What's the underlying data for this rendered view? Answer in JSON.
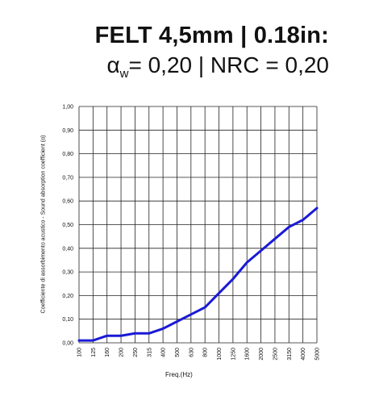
{
  "header": {
    "title": "FELT 4,5mm | 0.18in:",
    "alpha_symbol": "α",
    "alpha_sub": "w",
    "alpha_rest": "= 0,20 | NRC = 0,20"
  },
  "chart_data": {
    "type": "line",
    "title": "FELT 4,5mm | 0.18in:",
    "subtitle": "αw= 0,20 | NRC = 0,20",
    "xlabel": "Freq.(Hz)",
    "ylabel": "Coefficiente di assorbimento acustico - Sound absorption coefficient (α)",
    "categories": [
      "100",
      "125",
      "160",
      "200",
      "250",
      "315",
      "400",
      "500",
      "630",
      "800",
      "1000",
      "1250",
      "1600",
      "2000",
      "2500",
      "3150",
      "4000",
      "5000"
    ],
    "yticks": [
      "0,00",
      "0,10",
      "0,20",
      "0,30",
      "0,40",
      "0,50",
      "0,60",
      "0,70",
      "0,80",
      "0,90",
      "1,00"
    ],
    "ylim": [
      0,
      1
    ],
    "grid": true,
    "series": [
      {
        "color": "#1a1ad6",
        "values": [
          0.01,
          0.01,
          0.03,
          0.03,
          0.04,
          0.04,
          0.06,
          0.09,
          0.12,
          0.15,
          0.21,
          0.27,
          0.34,
          0.39,
          0.44,
          0.49,
          0.52,
          0.57
        ]
      }
    ]
  }
}
